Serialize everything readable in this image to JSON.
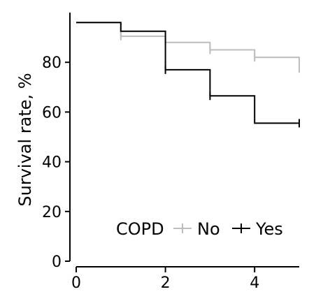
{
  "chart_data": {
    "type": "line",
    "subtype": "kaplan-meier step curve",
    "title": "",
    "xlabel": "",
    "ylabel": "Survival rate, %",
    "xlim": [
      0,
      5
    ],
    "ylim": [
      0,
      100
    ],
    "xticks": [
      0,
      2,
      4
    ],
    "yticks": [
      0,
      20,
      40,
      60,
      80
    ],
    "grid": false,
    "legend": {
      "title": "COPD",
      "position": "bottom-right"
    },
    "series": [
      {
        "name": "No",
        "color": "#bdbdbd",
        "steps": [
          {
            "x": 0,
            "y": 96
          },
          {
            "x": 1,
            "y": 90.5
          },
          {
            "x": 2,
            "y": 88
          },
          {
            "x": 3,
            "y": 85
          },
          {
            "x": 4,
            "y": 82
          },
          {
            "x": 5,
            "y": 77.5
          }
        ],
        "censored": [
          {
            "x": 1,
            "y": 90.5
          },
          {
            "x": 2,
            "y": 88
          },
          {
            "x": 3,
            "y": 85
          },
          {
            "x": 4,
            "y": 82
          },
          {
            "x": 5,
            "y": 77.5
          }
        ]
      },
      {
        "name": "Yes",
        "color": "#000000",
        "steps": [
          {
            "x": 0,
            "y": 96
          },
          {
            "x": 1,
            "y": 92.5
          },
          {
            "x": 2,
            "y": 77
          },
          {
            "x": 3,
            "y": 66.5
          },
          {
            "x": 4,
            "y": 55.5
          },
          {
            "x": 5,
            "y": 55.5
          }
        ],
        "censored": [
          {
            "x": 2,
            "y": 77
          },
          {
            "x": 3,
            "y": 66.5
          },
          {
            "x": 5,
            "y": 55.5
          }
        ]
      }
    ]
  }
}
